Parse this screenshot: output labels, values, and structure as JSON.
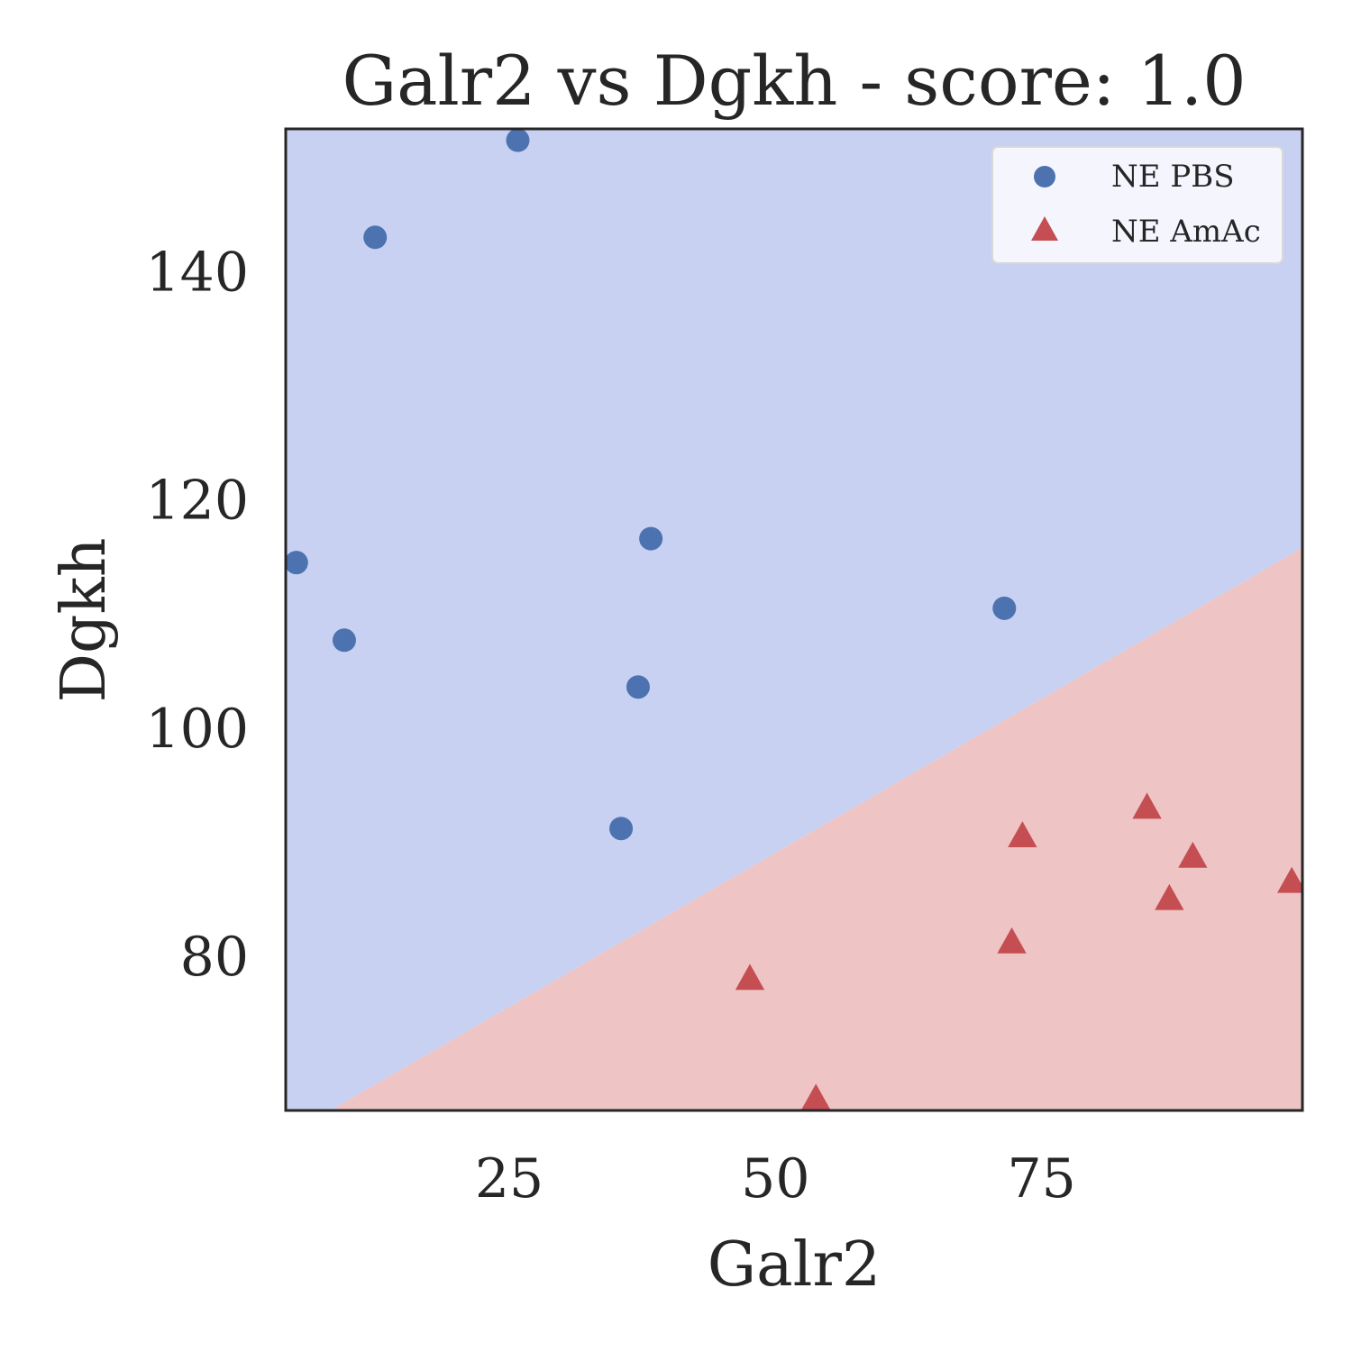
{
  "chart_data": {
    "type": "scatter",
    "title": "Galr2 vs Dgkh - score: 1.0",
    "xlabel": "Galr2",
    "ylabel": "Dgkh",
    "xlim": [
      4.0,
      99.5
    ],
    "ylim": [
      66.5,
      152.5
    ],
    "xticks": [
      25,
      50,
      75
    ],
    "yticks": [
      80,
      100,
      120,
      140
    ],
    "grid": false,
    "legend_position": "top-right",
    "decision_boundary": {
      "points": [
        [
          8.2,
          66.5
        ],
        [
          99.5,
          115.8
        ]
      ],
      "above_color": "#c8d1f2",
      "below_color": "#efc4c4"
    },
    "series": [
      {
        "name": "NE PBS",
        "marker": "circle",
        "color": "#4c72b0",
        "points": [
          [
            5.0,
            114.5
          ],
          [
            9.5,
            107.7
          ],
          [
            12.4,
            143.0
          ],
          [
            25.8,
            151.5
          ],
          [
            35.5,
            91.2
          ],
          [
            37.1,
            103.6
          ],
          [
            38.3,
            116.6
          ],
          [
            71.5,
            110.5
          ]
        ]
      },
      {
        "name": "NE AmAc",
        "marker": "triangle",
        "color": "#c44e52",
        "points": [
          [
            47.6,
            78.0
          ],
          [
            53.8,
            67.5
          ],
          [
            72.2,
            81.2
          ],
          [
            73.2,
            90.5
          ],
          [
            84.9,
            93.0
          ],
          [
            87.0,
            85.0
          ],
          [
            89.2,
            88.7
          ],
          [
            98.5,
            86.5
          ]
        ]
      }
    ]
  }
}
